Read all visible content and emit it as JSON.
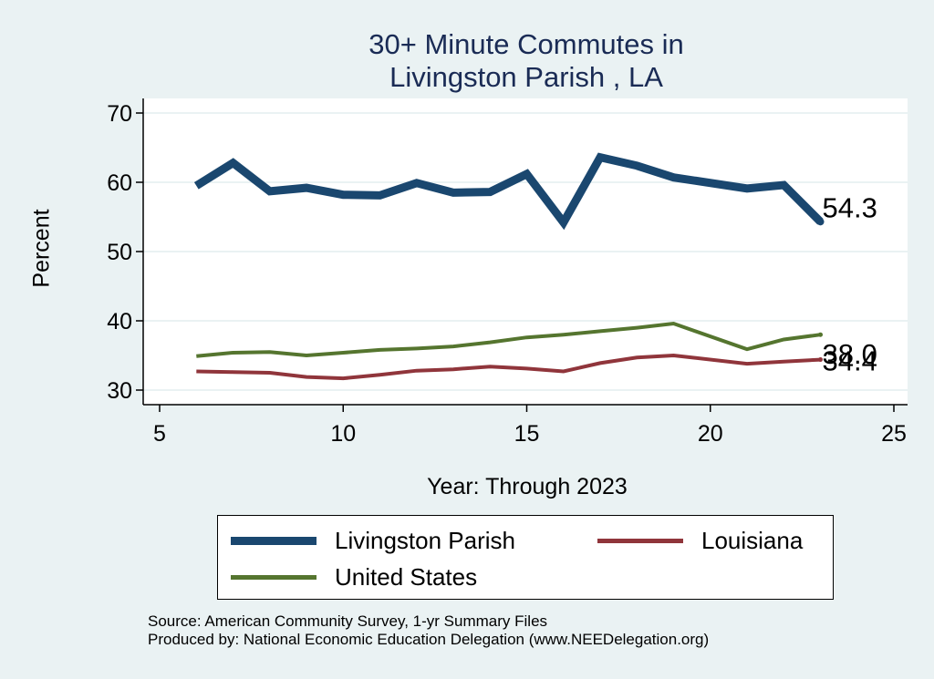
{
  "chart_data": {
    "type": "line",
    "title": [
      "30+ Minute Commutes in",
      "Livingston Parish , LA"
    ],
    "xlabel": "Year: Through 2023",
    "ylabel": "Percent",
    "xlim": [
      5,
      25
    ],
    "ylim": [
      28,
      72
    ],
    "xticks": [
      5,
      10,
      15,
      20,
      25
    ],
    "yticks": [
      30,
      40,
      50,
      60,
      70
    ],
    "grid": true,
    "series": [
      {
        "name": "Livingston Parish",
        "color": "#1a476f",
        "x": [
          6,
          7,
          8,
          9,
          10,
          11,
          12,
          13,
          14,
          15,
          16,
          17,
          18,
          19,
          21,
          22,
          23
        ],
        "y": [
          59.5,
          62.8,
          58.7,
          59.2,
          58.2,
          58.1,
          59.9,
          58.5,
          58.6,
          61.2,
          54.2,
          63.6,
          62.4,
          60.7,
          59.1,
          59.6,
          54.3
        ],
        "end_label": "54.3"
      },
      {
        "name": "Louisiana",
        "color": "#90353b",
        "x": [
          6,
          7,
          8,
          9,
          10,
          11,
          12,
          13,
          14,
          15,
          16,
          17,
          18,
          19,
          21,
          22,
          23
        ],
        "y": [
          32.7,
          32.6,
          32.5,
          31.9,
          31.7,
          32.2,
          32.8,
          33.0,
          33.4,
          33.1,
          32.7,
          33.9,
          34.7,
          35.0,
          33.8,
          34.1,
          34.4
        ],
        "end_label": "34.4"
      },
      {
        "name": "United States",
        "color": "#55752f",
        "x": [
          6,
          7,
          8,
          9,
          10,
          11,
          12,
          13,
          14,
          15,
          16,
          17,
          18,
          19,
          21,
          22,
          23
        ],
        "y": [
          34.9,
          35.4,
          35.5,
          35.0,
          35.4,
          35.8,
          36.0,
          36.3,
          36.9,
          37.6,
          38.0,
          38.5,
          39.0,
          39.6,
          35.9,
          37.3,
          38.0
        ],
        "end_label": "38.0"
      }
    ],
    "legend_position": "bottom"
  },
  "footnotes": {
    "source": "Source: American Community Survey, 1-yr Summary Files",
    "produced": "Produced by: National Economic Education Delegation (www.NEEDelegation.org)"
  }
}
